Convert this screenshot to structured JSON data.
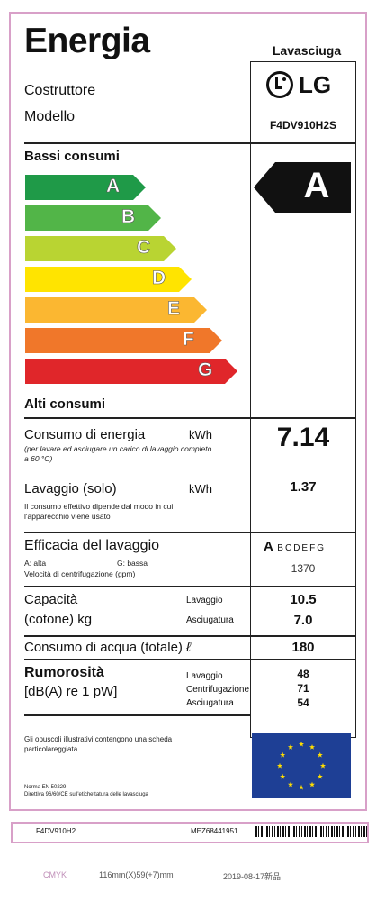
{
  "header": {
    "title": "Energia",
    "appliance_type": "Lavasciuga",
    "manufacturer_label": "Costruttore",
    "model_label": "Modello",
    "brand": "LG",
    "model": "F4DV910H2S"
  },
  "scale": {
    "top_label": "Bassi consumi",
    "bottom_label": "Alti consumi",
    "current_class": "A",
    "classes": [
      {
        "letter": "A",
        "color": "#1f9a48"
      },
      {
        "letter": "B",
        "color": "#52b548"
      },
      {
        "letter": "C",
        "color": "#b9d432"
      },
      {
        "letter": "D",
        "color": "#ffe400"
      },
      {
        "letter": "E",
        "color": "#fbb731"
      },
      {
        "letter": "F",
        "color": "#f0772a"
      },
      {
        "letter": "G",
        "color": "#e0262a"
      }
    ]
  },
  "energy": {
    "label": "Consumo di energia",
    "unit": "kWh",
    "note": "(per lavare ed asciugare un carico di lavaggio completo a 60 °C)",
    "value": "7.14"
  },
  "wash_only": {
    "label": "Lavaggio (solo)",
    "unit": "kWh",
    "note": "Il consumo effettivo dipende dal modo in cui l'apparecchio viene usato",
    "value": "1.37"
  },
  "wash_efficiency": {
    "label": "Efficacia del lavaggio",
    "legend_high": "A: alta",
    "legend_low": "G: bassa",
    "spin_label": "Velocità di centrifugazione (gpm)",
    "class_first": "A",
    "class_rest": "BCDEFG",
    "spin_value": "1370"
  },
  "capacity": {
    "label_line1": "Capacità",
    "label_line2": "(cotone) kg",
    "wash_label": "Lavaggio",
    "dry_label": "Asciugatura",
    "wash_value": "10.5",
    "dry_value": "7.0"
  },
  "water": {
    "label": "Consumo di acqua (totale)",
    "unit": "ℓ",
    "value": "180"
  },
  "noise": {
    "label_line1": "Rumorosità",
    "label_line2": "[dB(A) re 1 pW]",
    "wash_label": "Lavaggio",
    "spin_label": "Centrifugazione",
    "dry_label": "Asciugatura",
    "wash_value": "48",
    "spin_value": "71",
    "dry_value": "54"
  },
  "footer": {
    "brochure_note": "Gli opuscoli illustrativi contengono una scheda particolareggiata",
    "norm": "Norma EN 50229",
    "directive": "Direttiva 96/60/CE sull'etichettatura delle lavasciuga"
  },
  "strip": {
    "model": "F4DV910H2",
    "code": "MEZ68441951"
  },
  "print_info": {
    "colors": "CMYK",
    "size": "116mm(X)59(+7)mm",
    "date": "2019-08-17新品"
  }
}
